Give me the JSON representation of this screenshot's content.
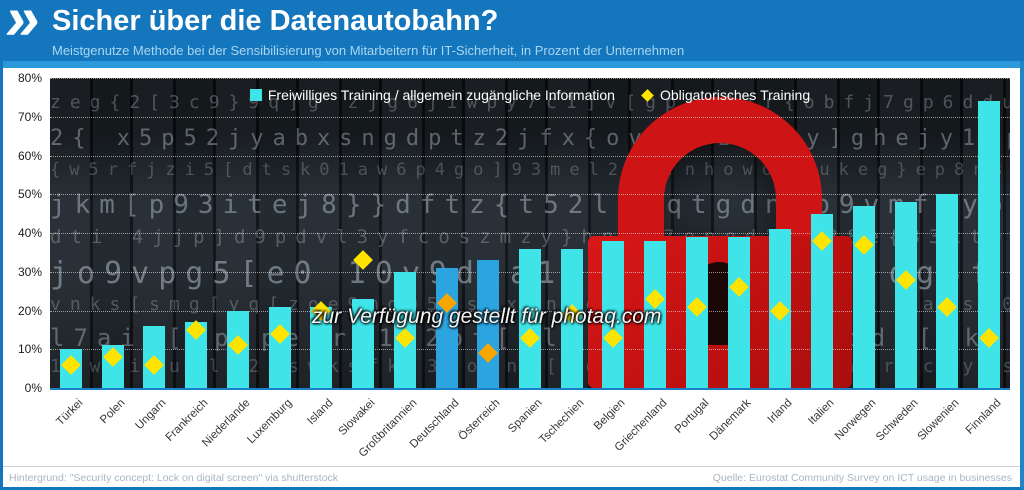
{
  "header": {
    "logo_mark": "»",
    "title": "Sicher über die Datenautobahn?",
    "subtitle": "Meistgenutze Methode bei der Sensibilisierung von Mitarbeitern für IT-Sicherheit, in Prozent der Unternehmen"
  },
  "watermark": "zur Verfügung gestellt für photaq.com",
  "footer": {
    "source_left": "Hintergrund: \"Security concept: Lock on digital screen\" via shutterstock",
    "source_right": "Quelle: Eurostat Community Survey on ICT usage in businesses"
  },
  "colors": {
    "header_bg": "#1476BC",
    "header_strip": "#2B99D9",
    "bar": "#3EE4E8",
    "bar_highlight": "#2BA4DF",
    "marker": "#FFE400",
    "marker_highlight": "#F7A600",
    "lock_red": "#CE1414",
    "plot_bg": "#16191d"
  },
  "chart_data": {
    "type": "bar",
    "title": "Sicher über die Datenautobahn?",
    "subtitle": "Meistgenutze Methode bei der Sensibilisierung von Mitarbeitern für IT-Sicherheit, in Prozent der Unternehmen",
    "categories": [
      "Türkei",
      "Polen",
      "Ungarn",
      "Frankreich",
      "Niederlande",
      "Luxemburg",
      "Island",
      "Slowakei",
      "Großbritannien",
      "Deutschland",
      "Österreich",
      "Spanien",
      "Tschechien",
      "Belgien",
      "Griechenland",
      "Portugal",
      "Dänemark",
      "Irland",
      "Italien",
      "Norwegen",
      "Schweden",
      "Slowenien",
      "Finnland"
    ],
    "series": [
      {
        "name": "Freiwilliges Training / allgemein zugängliche Information",
        "type": "bar",
        "values": [
          10,
          11,
          16,
          17,
          20,
          21,
          21,
          23,
          30,
          31,
          33,
          36,
          36,
          38,
          38,
          39,
          39,
          41,
          45,
          47,
          48,
          50,
          74
        ]
      },
      {
        "name": "Obligatorisches Training",
        "type": "diamond-marker",
        "values": [
          6,
          8,
          6,
          15,
          11,
          14,
          20,
          33,
          13,
          22,
          9,
          13,
          19,
          13,
          23,
          21,
          26,
          20,
          38,
          37,
          28,
          21,
          13
        ]
      }
    ],
    "highlighted_categories": [
      "Deutschland",
      "Österreich"
    ],
    "highlight_indices": [
      9,
      10
    ],
    "xlabel": "",
    "ylabel": "",
    "ylim": [
      0,
      80
    ],
    "yticks": [
      "80%",
      "70%",
      "60%",
      "50%",
      "40%",
      "30%",
      "20%",
      "10%",
      "0%"
    ],
    "grid": "horizontal-dotted",
    "legend_position": "top-center"
  }
}
